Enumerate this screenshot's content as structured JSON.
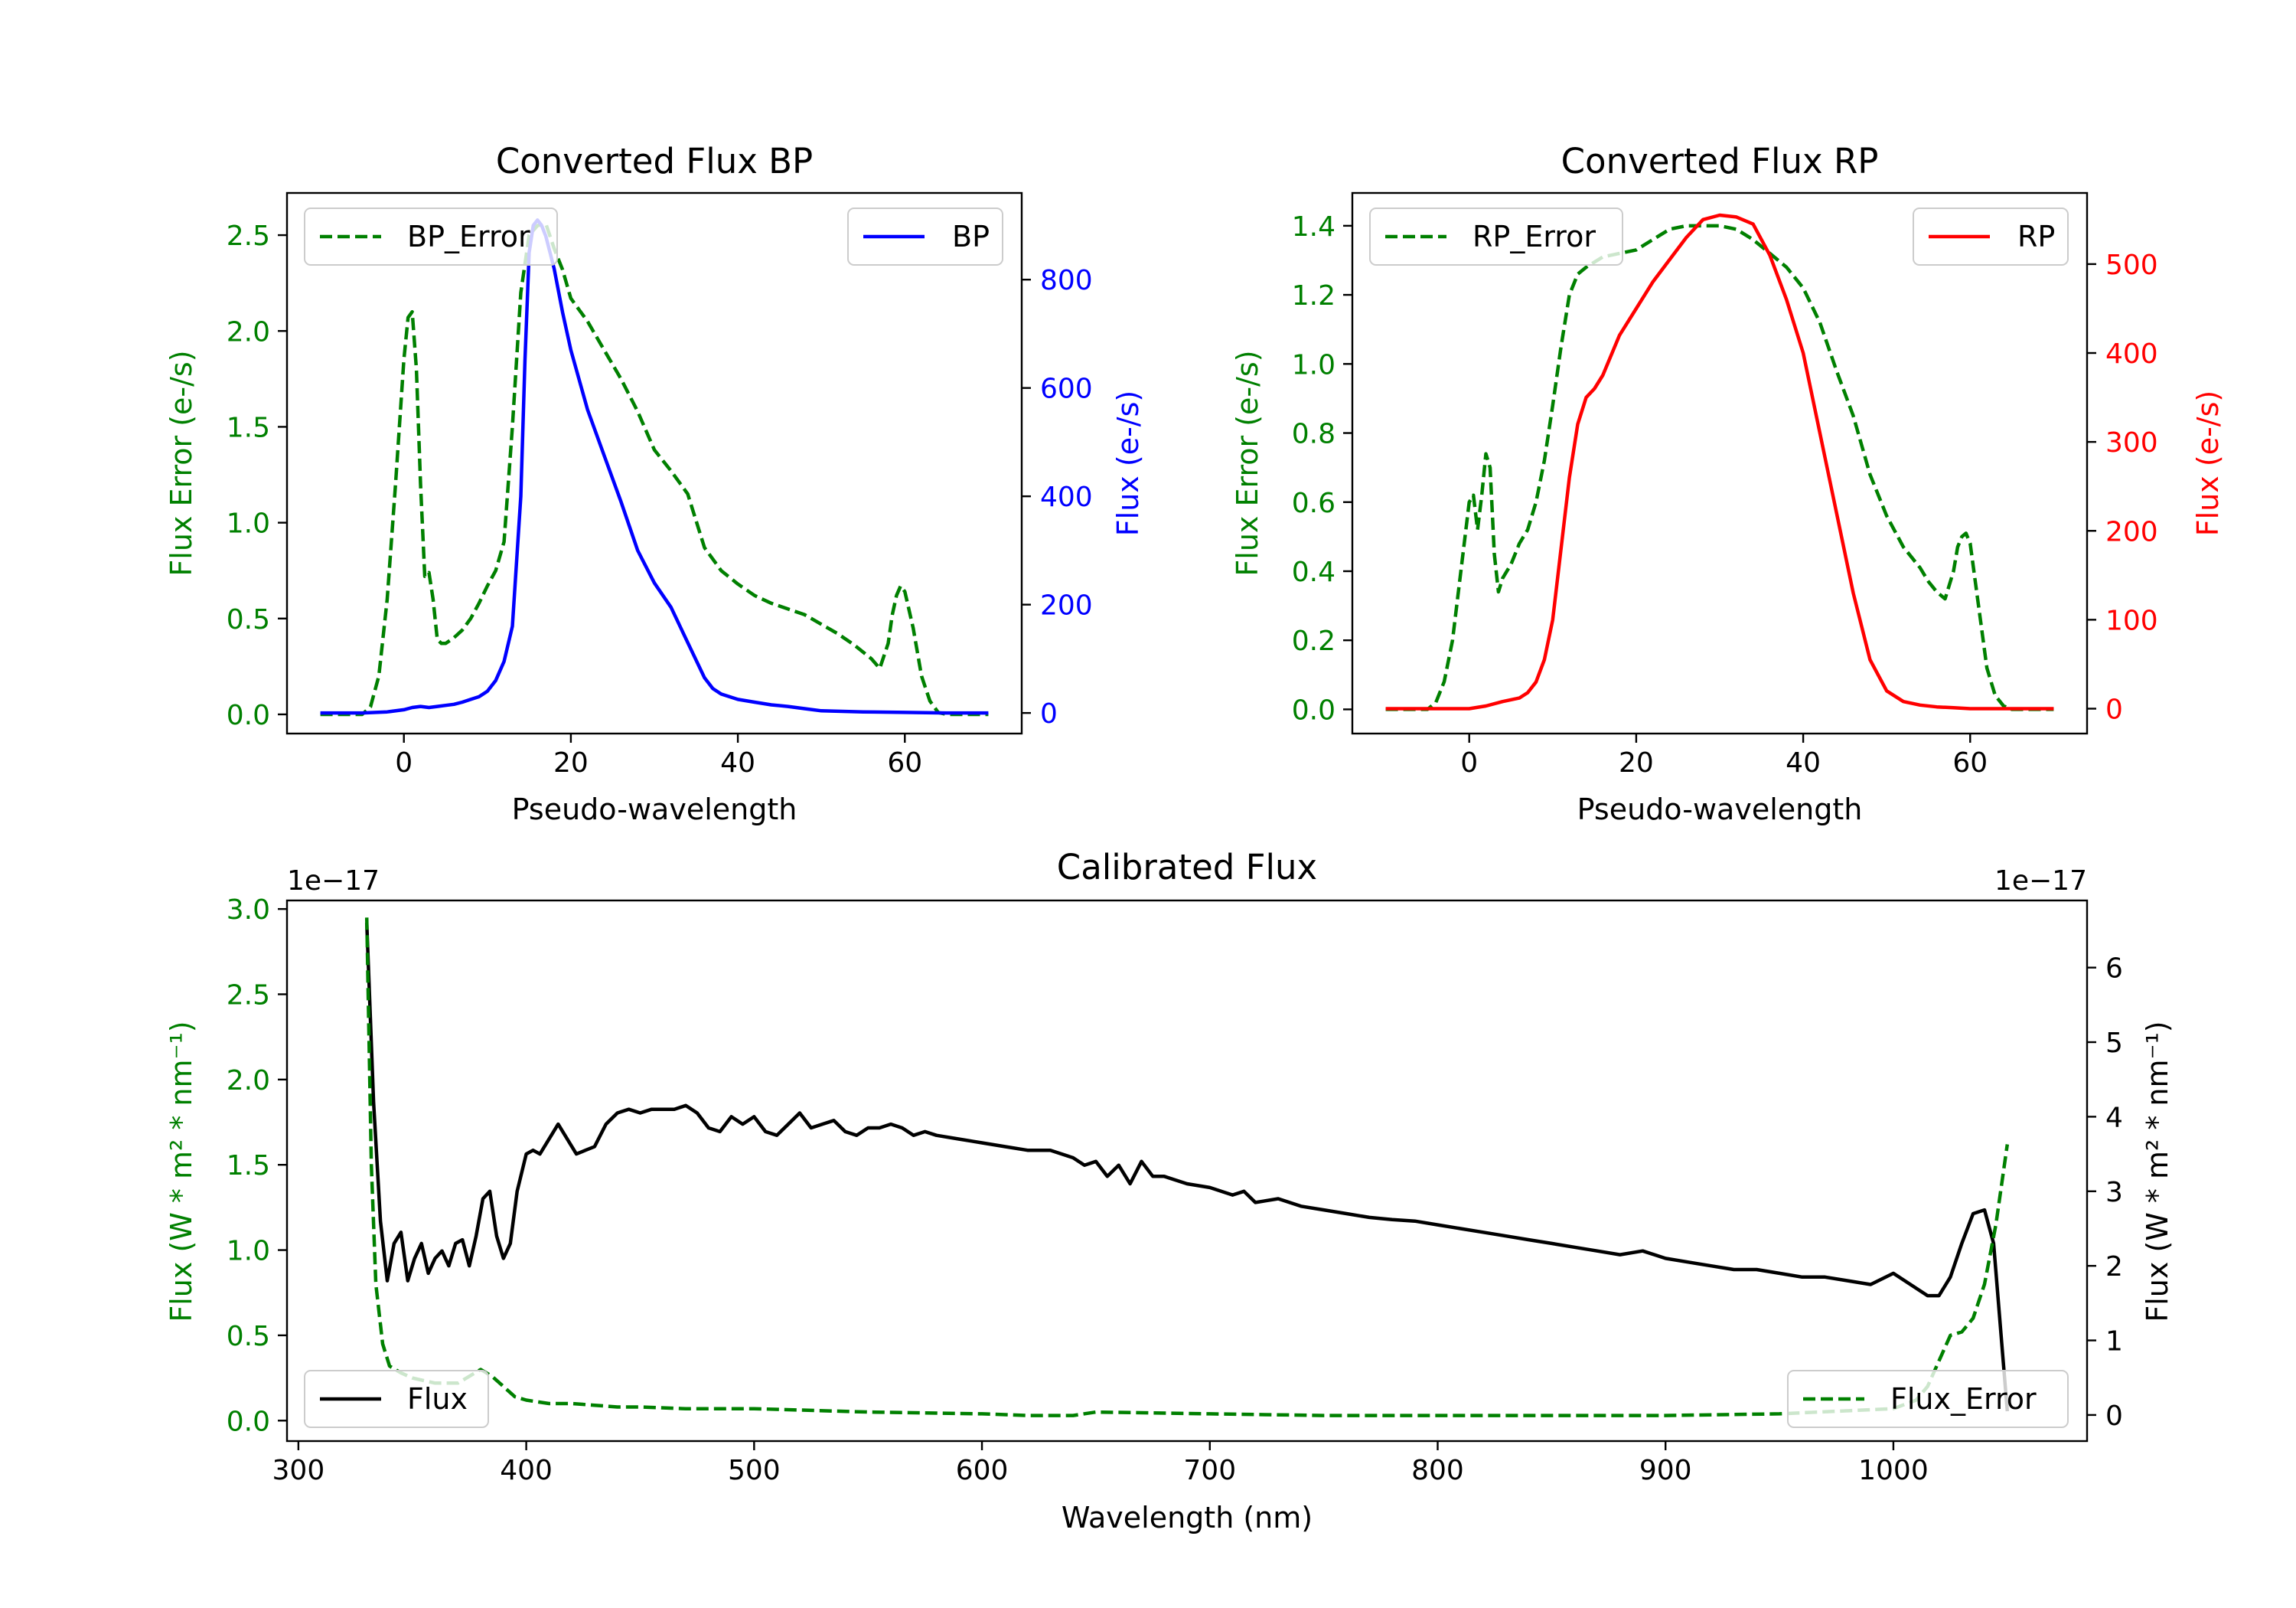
{
  "chart_data": [
    {
      "type": "line",
      "title": "Converted Flux BP",
      "xlabel": "Pseudo-wavelength",
      "ylabel_left": "Flux Error (e-/s)",
      "ylabel_right": "Flux (e-/s)",
      "xlim": [
        -14,
        74
      ],
      "ylim_left": [
        -0.1,
        2.72
      ],
      "ylim_right": [
        -38,
        960
      ],
      "x_ticks": [
        0,
        20,
        40,
        60
      ],
      "y_ticks_left": [
        "0.0",
        "0.5",
        "1.0",
        "1.5",
        "2.0",
        "2.5"
      ],
      "y_ticks_right": [
        "0",
        "200",
        "400",
        "600",
        "800"
      ],
      "left_color": "#008000",
      "right_color": "#0000ff",
      "legend_left": "BP_Error",
      "legend_right": "BP",
      "series": [
        {
          "name": "BP_Error",
          "axis": "left",
          "style": "dashed",
          "color": "#008000",
          "x": [
            -10,
            -5,
            -4,
            -3,
            -2,
            -1,
            0,
            0.5,
            1,
            1.5,
            2,
            2.5,
            3,
            3.5,
            4,
            4.5,
            5,
            6,
            7,
            8,
            9,
            10,
            11,
            12,
            13,
            14,
            15,
            16,
            17,
            18,
            19,
            20,
            22,
            24,
            26,
            28,
            30,
            32,
            34,
            36,
            38,
            40,
            42,
            44,
            46,
            48,
            50,
            52,
            54,
            56,
            57,
            58,
            58.5,
            59,
            59.5,
            60,
            61,
            62,
            63,
            64,
            65,
            67,
            70
          ],
          "y": [
            0.0,
            0.0,
            0.04,
            0.2,
            0.6,
            1.2,
            1.85,
            2.07,
            2.1,
            1.8,
            1.2,
            0.72,
            0.74,
            0.6,
            0.39,
            0.37,
            0.37,
            0.4,
            0.44,
            0.5,
            0.58,
            0.67,
            0.75,
            0.9,
            1.5,
            2.2,
            2.5,
            2.55,
            2.56,
            2.43,
            2.32,
            2.17,
            2.05,
            1.9,
            1.75,
            1.58,
            1.38,
            1.27,
            1.15,
            0.87,
            0.75,
            0.68,
            0.62,
            0.58,
            0.55,
            0.52,
            0.47,
            0.42,
            0.36,
            0.29,
            0.24,
            0.37,
            0.52,
            0.62,
            0.67,
            0.64,
            0.45,
            0.2,
            0.07,
            0.01,
            0.0,
            0.0,
            0.0
          ]
        },
        {
          "name": "BP",
          "axis": "right",
          "style": "solid",
          "color": "#0000ff",
          "x": [
            -10,
            -5,
            -2,
            0,
            1,
            2,
            3,
            4,
            5,
            6,
            7,
            8,
            9,
            10,
            11,
            12,
            13,
            14,
            14.5,
            15,
            15.5,
            16,
            16.5,
            17,
            18,
            19,
            20,
            22,
            24,
            26,
            28,
            30,
            32,
            34,
            36,
            37,
            38,
            40,
            42,
            44,
            46,
            48,
            50,
            55,
            60,
            65,
            70
          ],
          "y": [
            0,
            0,
            2,
            6,
            10,
            12,
            10,
            12,
            14,
            16,
            20,
            25,
            30,
            40,
            60,
            95,
            160,
            400,
            650,
            850,
            900,
            910,
            900,
            880,
            820,
            740,
            670,
            560,
            475,
            390,
            300,
            240,
            195,
            130,
            65,
            45,
            35,
            25,
            20,
            15,
            12,
            8,
            4,
            2,
            1,
            0,
            0
          ]
        }
      ]
    },
    {
      "type": "line",
      "title": "Converted Flux RP",
      "xlabel": "Pseudo-wavelength",
      "ylabel_left": "Flux Error (e-/s)",
      "ylabel_right": "Flux (e-/s)",
      "xlim": [
        -14,
        74
      ],
      "ylim_left": [
        -0.07,
        1.495
      ],
      "ylim_right": [
        -28,
        580
      ],
      "x_ticks": [
        0,
        20,
        40,
        60
      ],
      "y_ticks_left": [
        "0.0",
        "0.2",
        "0.4",
        "0.6",
        "0.8",
        "1.0",
        "1.2",
        "1.4"
      ],
      "y_ticks_right": [
        "0",
        "100",
        "200",
        "300",
        "400",
        "500"
      ],
      "left_color": "#008000",
      "right_color": "#ff0000",
      "legend_left": "RP_Error",
      "legend_right": "RP",
      "series": [
        {
          "name": "RP_Error",
          "axis": "left",
          "style": "dashed",
          "color": "#008000",
          "x": [
            -10,
            -5,
            -4,
            -3,
            -2,
            -1,
            0,
            0.5,
            1,
            1.5,
            2,
            2.5,
            3,
            3.5,
            4,
            5,
            6,
            7,
            8,
            9,
            10,
            11,
            12,
            13,
            14,
            16,
            18,
            20,
            22,
            24,
            26,
            28,
            30,
            32,
            34,
            36,
            38,
            40,
            42,
            44,
            46,
            48,
            50,
            52,
            54,
            55,
            56,
            57,
            58,
            58.5,
            59,
            59.5,
            60,
            61,
            62,
            63,
            64,
            65,
            67,
            70
          ],
          "y": [
            0.0,
            0.0,
            0.02,
            0.08,
            0.2,
            0.4,
            0.6,
            0.62,
            0.52,
            0.62,
            0.74,
            0.7,
            0.45,
            0.34,
            0.38,
            0.42,
            0.48,
            0.52,
            0.6,
            0.72,
            0.88,
            1.05,
            1.2,
            1.26,
            1.28,
            1.31,
            1.32,
            1.33,
            1.36,
            1.39,
            1.4,
            1.4,
            1.4,
            1.39,
            1.36,
            1.32,
            1.28,
            1.22,
            1.12,
            0.98,
            0.85,
            0.68,
            0.56,
            0.47,
            0.41,
            0.37,
            0.34,
            0.32,
            0.4,
            0.47,
            0.5,
            0.51,
            0.48,
            0.3,
            0.12,
            0.04,
            0.01,
            0.0,
            0.0,
            0.0
          ]
        },
        {
          "name": "RP",
          "axis": "right",
          "style": "solid",
          "color": "#ff0000",
          "x": [
            -10,
            -5,
            -2,
            0,
            2,
            4,
            6,
            7,
            8,
            9,
            10,
            11,
            12,
            13,
            14,
            15,
            16,
            18,
            20,
            22,
            24,
            26,
            28,
            30,
            32,
            34,
            36,
            38,
            40,
            42,
            44,
            46,
            48,
            50,
            52,
            54,
            56,
            58,
            60,
            65,
            70
          ],
          "y": [
            0,
            0,
            0,
            0,
            3,
            8,
            12,
            18,
            30,
            55,
            100,
            180,
            260,
            320,
            350,
            360,
            375,
            420,
            450,
            480,
            505,
            530,
            550,
            555,
            553,
            545,
            510,
            460,
            400,
            310,
            220,
            130,
            55,
            20,
            8,
            4,
            2,
            1,
            0,
            0,
            0
          ]
        }
      ]
    },
    {
      "type": "line",
      "title": "Calibrated Flux",
      "xlabel": "Wavelength (nm)",
      "ylabel_left": "Flux (W * m² * nm⁻¹)",
      "ylabel_right": "Flux (W * m² * nm⁻¹)",
      "offset_left": "1e−17",
      "offset_right": "1e−17",
      "xlim": [
        295,
        1085
      ],
      "ylim_left": [
        -0.12,
        3.05
      ],
      "ylim_right": [
        -0.35,
        6.9
      ],
      "x_ticks": [
        300,
        400,
        500,
        600,
        700,
        800,
        900,
        1000
      ],
      "y_ticks_left": [
        "0.0",
        "0.5",
        "1.0",
        "1.5",
        "2.0",
        "2.5",
        "3.0"
      ],
      "y_ticks_right": [
        "0",
        "1",
        "2",
        "3",
        "4",
        "5",
        "6"
      ],
      "left_color": "#008000",
      "right_color": "#000000",
      "legend_left": "Flux",
      "legend_right": "Flux_Error",
      "series": [
        {
          "name": "Flux",
          "axis": "right",
          "style": "solid",
          "color": "#000000",
          "x": [
            330,
            333,
            336,
            339,
            342,
            345,
            348,
            351,
            354,
            357,
            360,
            363,
            366,
            369,
            372,
            375,
            378,
            381,
            384,
            387,
            390,
            393,
            396,
            400,
            403,
            406,
            410,
            414,
            418,
            422,
            426,
            430,
            435,
            440,
            445,
            450,
            455,
            460,
            465,
            470,
            475,
            480,
            485,
            490,
            495,
            500,
            505,
            510,
            515,
            520,
            525,
            530,
            535,
            540,
            545,
            550,
            555,
            560,
            565,
            570,
            575,
            580,
            590,
            600,
            610,
            620,
            630,
            640,
            645,
            650,
            655,
            660,
            665,
            670,
            675,
            680,
            690,
            700,
            710,
            715,
            720,
            730,
            740,
            750,
            760,
            770,
            780,
            790,
            800,
            810,
            820,
            830,
            840,
            850,
            860,
            870,
            880,
            890,
            900,
            910,
            920,
            930,
            940,
            950,
            960,
            970,
            980,
            990,
            1000,
            1005,
            1010,
            1015,
            1020,
            1025,
            1030,
            1035,
            1040,
            1044,
            1048,
            1050
          ],
          "y": [
            6.6,
            4.2,
            2.6,
            1.8,
            2.3,
            2.45,
            1.8,
            2.1,
            2.3,
            1.9,
            2.1,
            2.2,
            2.0,
            2.3,
            2.35,
            2.0,
            2.4,
            2.9,
            3.0,
            2.4,
            2.1,
            2.3,
            3.0,
            3.5,
            3.55,
            3.5,
            3.7,
            3.9,
            3.7,
            3.5,
            3.55,
            3.6,
            3.9,
            4.05,
            4.1,
            4.05,
            4.1,
            4.1,
            4.1,
            4.15,
            4.05,
            3.85,
            3.8,
            4.0,
            3.9,
            4.0,
            3.8,
            3.75,
            3.9,
            4.05,
            3.85,
            3.9,
            3.95,
            3.8,
            3.75,
            3.85,
            3.85,
            3.9,
            3.85,
            3.75,
            3.8,
            3.75,
            3.7,
            3.65,
            3.6,
            3.55,
            3.55,
            3.45,
            3.35,
            3.4,
            3.2,
            3.35,
            3.1,
            3.4,
            3.2,
            3.2,
            3.1,
            3.05,
            2.95,
            3.0,
            2.85,
            2.9,
            2.8,
            2.75,
            2.7,
            2.65,
            2.62,
            2.6,
            2.55,
            2.5,
            2.45,
            2.4,
            2.35,
            2.3,
            2.25,
            2.2,
            2.15,
            2.2,
            2.1,
            2.05,
            2.0,
            1.95,
            1.95,
            1.9,
            1.85,
            1.85,
            1.8,
            1.75,
            1.9,
            1.8,
            1.7,
            1.6,
            1.6,
            1.85,
            2.3,
            2.7,
            2.75,
            2.3,
            0.8,
            0.05
          ]
        },
        {
          "name": "Flux_Error",
          "axis": "left",
          "style": "dashed",
          "color": "#008000",
          "x": [
            330,
            332,
            334,
            337,
            340,
            345,
            350,
            360,
            370,
            380,
            385,
            390,
            395,
            400,
            410,
            420,
            430,
            440,
            450,
            470,
            500,
            550,
            600,
            620,
            640,
            650,
            700,
            750,
            800,
            850,
            900,
            950,
            1000,
            1010,
            1015,
            1020,
            1025,
            1030,
            1035,
            1040,
            1045,
            1050
          ],
          "y": [
            2.95,
            1.5,
            0.8,
            0.45,
            0.32,
            0.28,
            0.25,
            0.22,
            0.22,
            0.3,
            0.26,
            0.2,
            0.14,
            0.12,
            0.1,
            0.1,
            0.09,
            0.08,
            0.08,
            0.07,
            0.07,
            0.05,
            0.04,
            0.03,
            0.03,
            0.05,
            0.04,
            0.03,
            0.03,
            0.03,
            0.03,
            0.04,
            0.07,
            0.12,
            0.2,
            0.35,
            0.5,
            0.52,
            0.6,
            0.8,
            1.15,
            1.62
          ]
        }
      ]
    }
  ]
}
